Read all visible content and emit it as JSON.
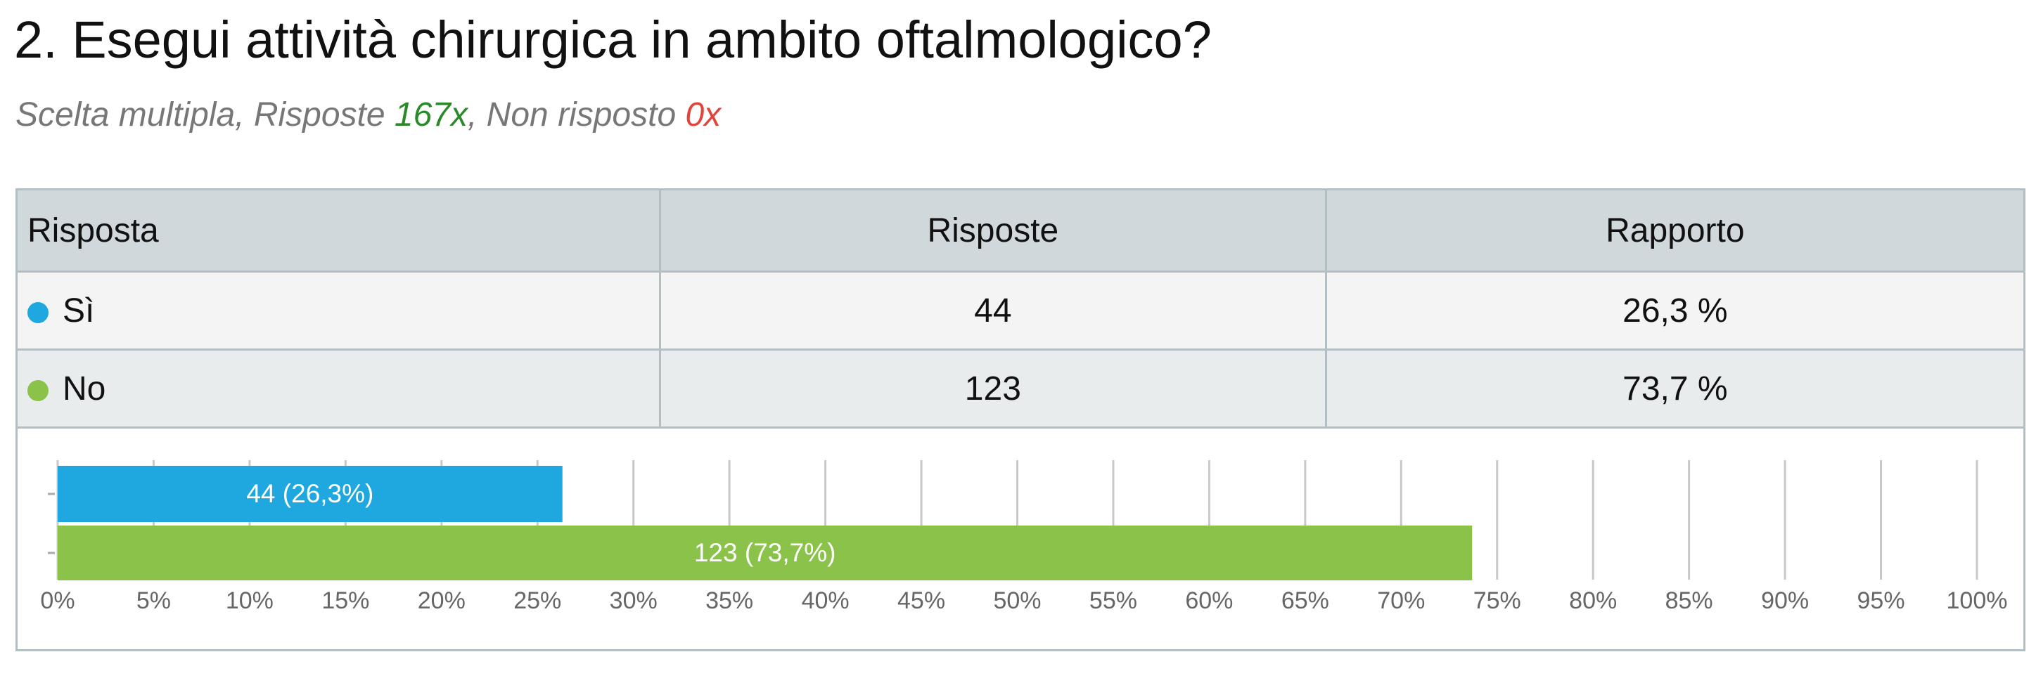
{
  "header": {
    "title": "2. Esegui attività chirurgica in ambito oftalmologico?",
    "subtitle": [
      "Scelta multipla, Risposte ",
      "167x",
      ", Non risposto ",
      "0x"
    ]
  },
  "table": {
    "columns": [
      "Risposta",
      "Risposte",
      "Rapporto"
    ],
    "rows": [
      [
        "Sì",
        "44",
        "26,3 %"
      ],
      [
        "No",
        "123",
        "73,7 %"
      ]
    ]
  },
  "chart_data": {
    "type": "hbar",
    "values": [
      26.3,
      73.7
    ],
    "value_labels": [
      "44 (26,3%)",
      "123 (73,7%)"
    ],
    "colors": [
      "#1fa8e0",
      "#8bc34a"
    ],
    "xlim": [
      0,
      100
    ],
    "xticks": [
      {
        "value": 0,
        "label": "0%"
      },
      {
        "value": 5,
        "label": "5%"
      },
      {
        "value": 10,
        "label": "10%"
      },
      {
        "value": 15,
        "label": "15%"
      },
      {
        "value": 20,
        "label": "20%"
      },
      {
        "value": 25,
        "label": "25%"
      },
      {
        "value": 30,
        "label": "30%"
      },
      {
        "value": 35,
        "label": "35%"
      },
      {
        "value": 40,
        "label": "40%"
      },
      {
        "value": 45,
        "label": "45%"
      },
      {
        "value": 50,
        "label": "50%"
      },
      {
        "value": 55,
        "label": "55%"
      },
      {
        "value": 60,
        "label": "60%"
      },
      {
        "value": 65,
        "label": "65%"
      },
      {
        "value": 70,
        "label": "70%"
      },
      {
        "value": 75,
        "label": "75%"
      },
      {
        "value": 80,
        "label": "80%"
      },
      {
        "value": 85,
        "label": "85%"
      },
      {
        "value": 90,
        "label": "90%"
      },
      {
        "value": 95,
        "label": "95%"
      },
      {
        "value": 100,
        "label": "100%"
      }
    ],
    "grid": true
  }
}
